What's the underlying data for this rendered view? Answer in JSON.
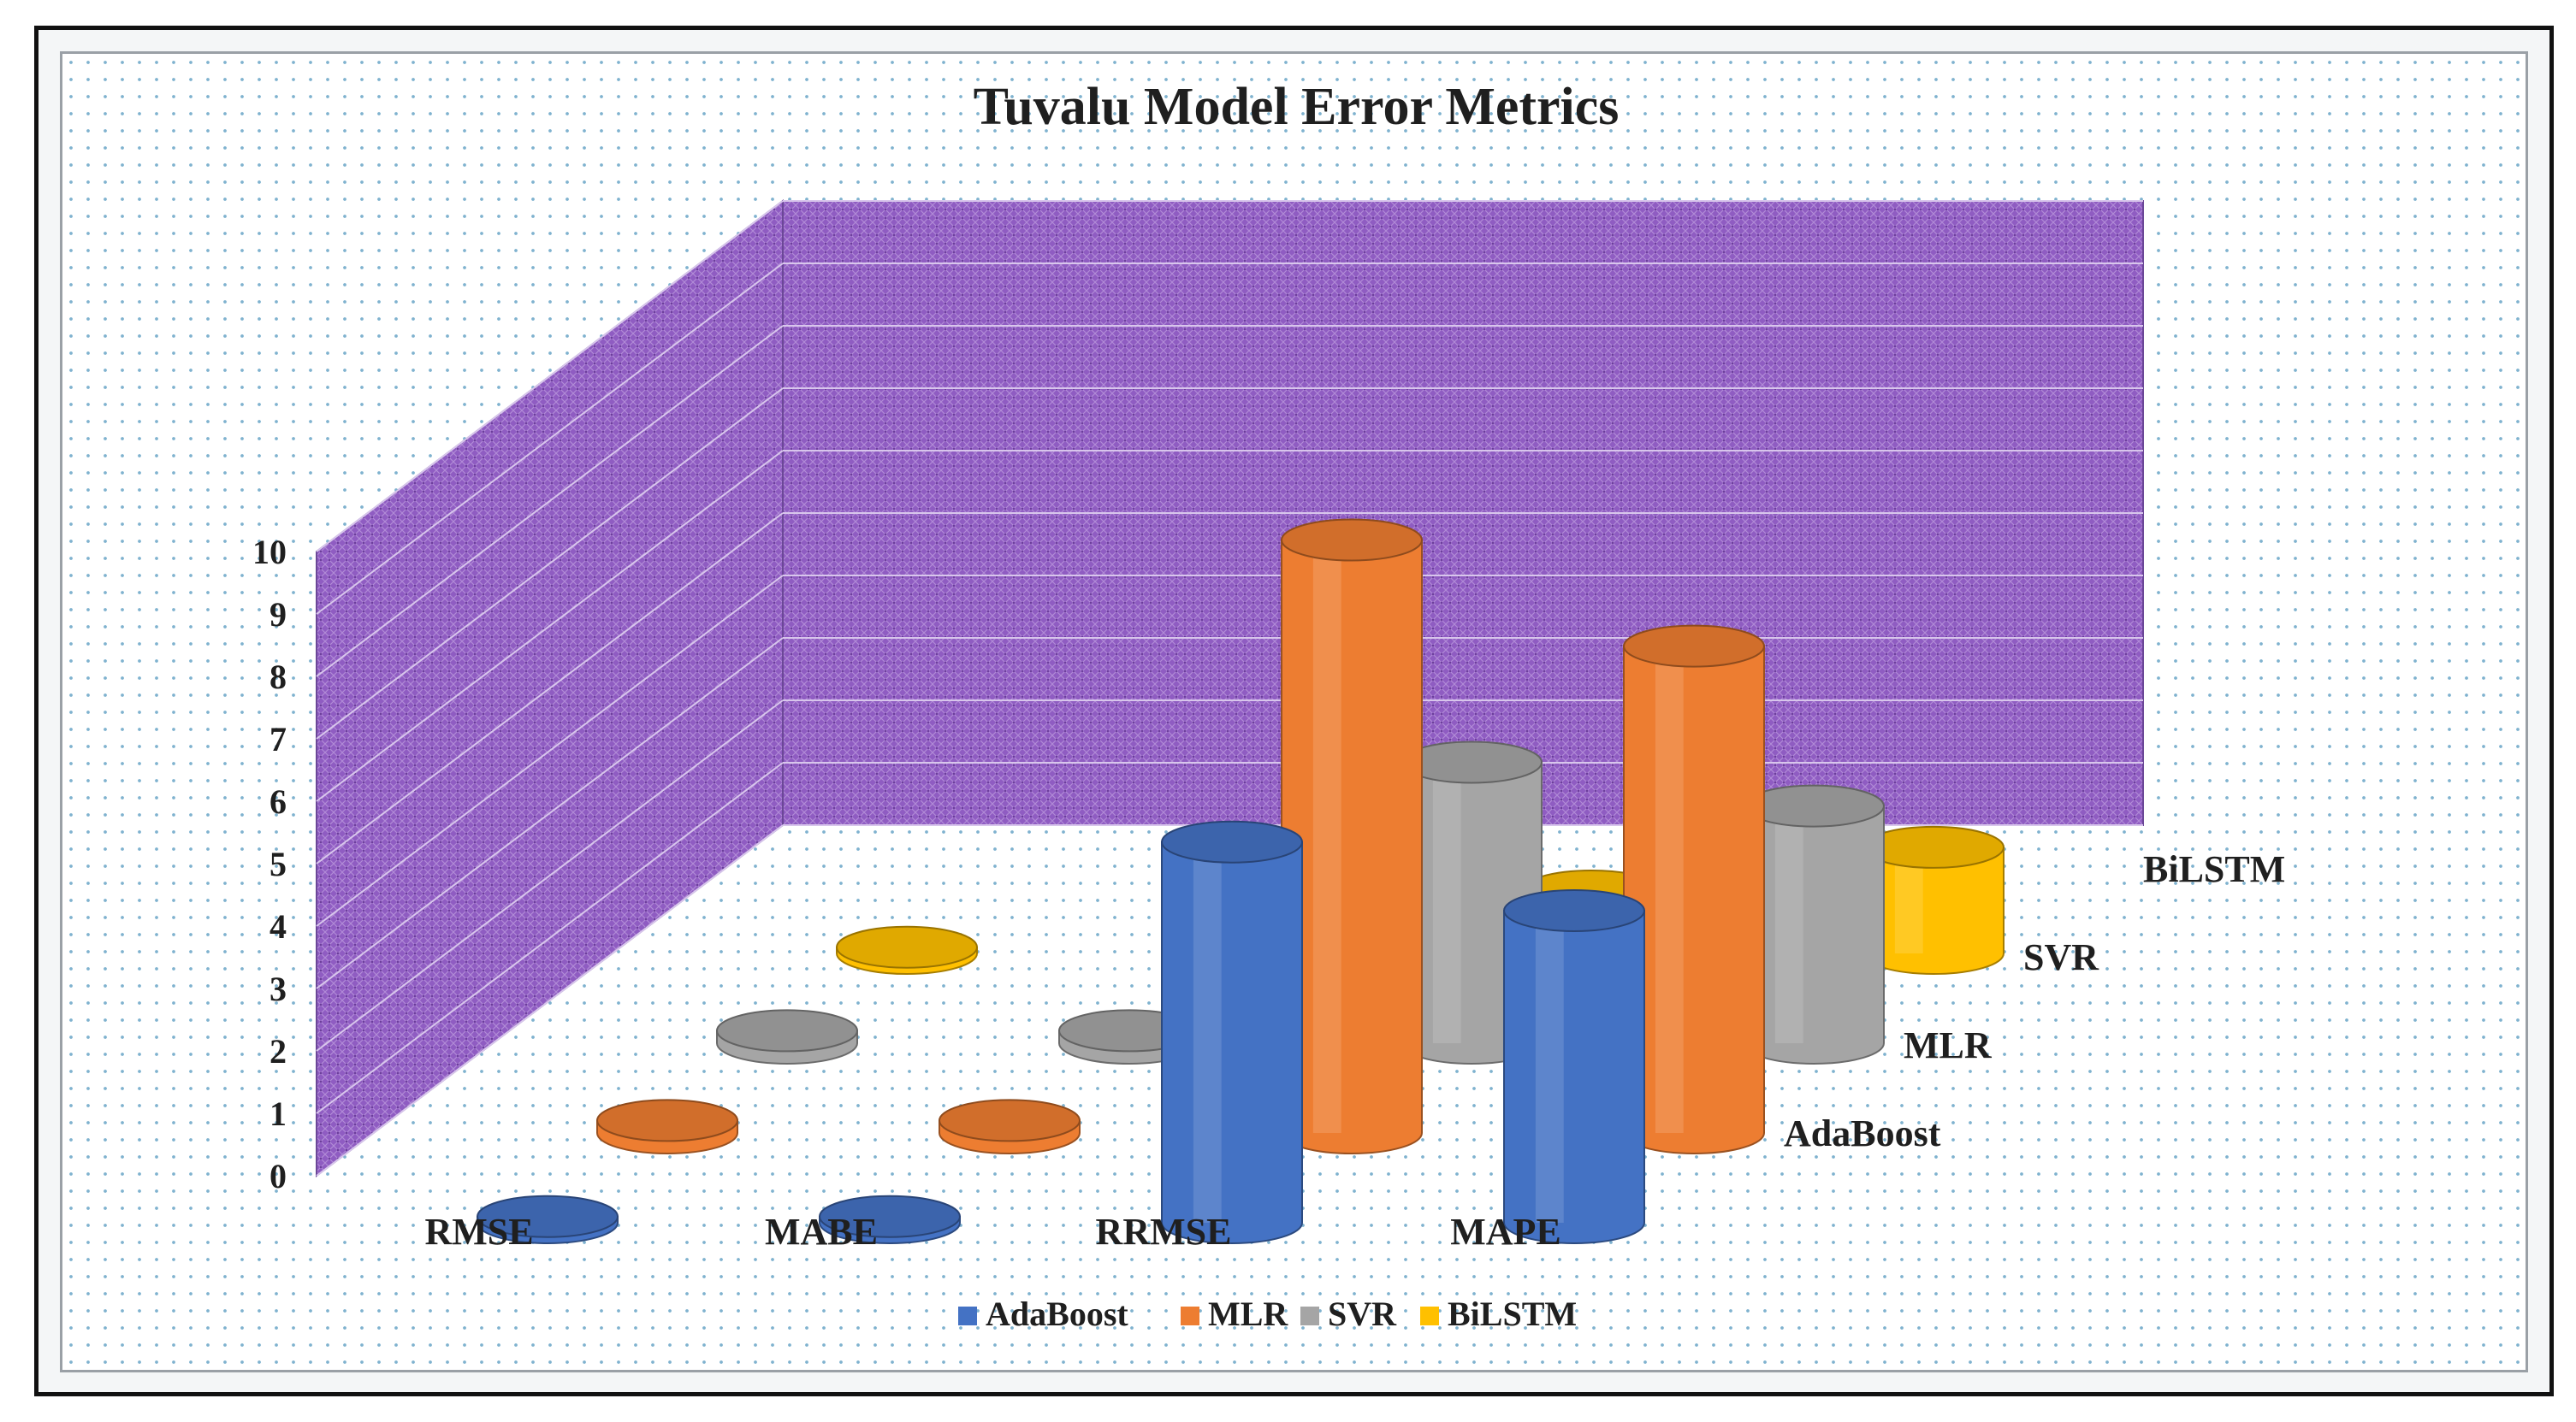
{
  "chart_data": {
    "type": "bar",
    "title": "Tuvalu Model Error Metrics",
    "categories": [
      "RMSE",
      "MABE",
      "RRMSE",
      "MAPE"
    ],
    "series": [
      {
        "name": "AdaBoost",
        "values": [
          0.1,
          0.1,
          6.1,
          5.0
        ]
      },
      {
        "name": "MLR",
        "values": [
          0.2,
          0.2,
          9.5,
          7.8
        ]
      },
      {
        "name": "SVR",
        "values": [
          0.2,
          0.2,
          4.5,
          3.8
        ]
      },
      {
        "name": "BiLSTM",
        "values": [
          0.1,
          0.1,
          1.0,
          1.7
        ]
      }
    ],
    "yticks": [
      "0",
      "1",
      "2",
      "3",
      "4",
      "5",
      "6",
      "7",
      "8",
      "9",
      "10"
    ],
    "ylim": [
      0,
      10
    ],
    "legend_position": "bottom",
    "grid": true,
    "colors": {
      "AdaBoost": "#4472C4",
      "MLR": "#ED7D31",
      "SVR": "#A5A5A5",
      "BiLSTM": "#FFC000",
      "walls": "#8e5bbf"
    }
  }
}
